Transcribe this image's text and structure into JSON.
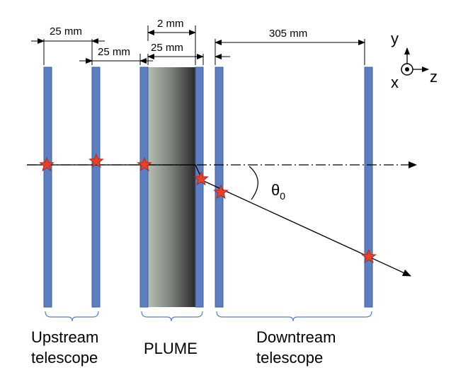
{
  "dimensions": {
    "upstream_gap": "25 mm",
    "upstream_to_plume": "25 mm",
    "plume_thickness": "2 mm",
    "plume_to_downstream": "25 mm",
    "downstream_span": "305 mm"
  },
  "axes": {
    "y": "y",
    "x": "x",
    "z": "z"
  },
  "angle": {
    "symbol": "θ",
    "subscript": "0"
  },
  "groups": {
    "upstream_line1": "Upstream",
    "upstream_line2": "telescope",
    "plume": "PLUME",
    "downstream_line1": "Downtream",
    "downstream_line2": "telescope"
  },
  "colors": {
    "plane_fill": "#5b7fc0",
    "plane_stroke": "#3f5f9a",
    "hit_star": "#e8412b",
    "hit_star_stroke": "#b52a16",
    "plume_dark": "#2e2e2e",
    "plume_light": "#b5bcb0",
    "bracket": "#5b7fc0"
  }
}
